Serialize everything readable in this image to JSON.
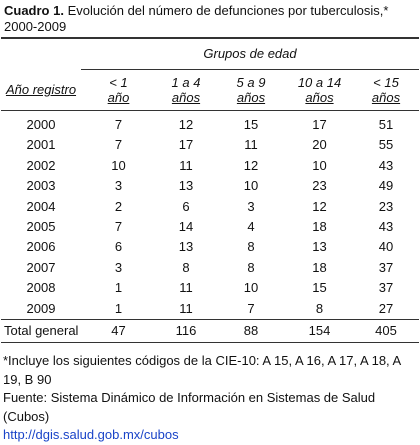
{
  "header": {
    "label": "Cuadro 1.",
    "title": "Evolución del número de defunciones por tuberculosis,* 2000-2009"
  },
  "table": {
    "group_header": "Grupos de edad",
    "row_header": "Año registro",
    "columns": [
      {
        "line1": "< 1",
        "line2": "año"
      },
      {
        "line1": "1 a 4",
        "line2": "años"
      },
      {
        "line1": "5 a 9",
        "line2": "años"
      },
      {
        "line1": "10 a 14",
        "line2": "años"
      },
      {
        "line1": "< 15",
        "line2": "años"
      }
    ],
    "rows": [
      {
        "year": 2000,
        "values": [
          7,
          12,
          15,
          17,
          51
        ]
      },
      {
        "year": 2001,
        "values": [
          7,
          17,
          11,
          20,
          55
        ]
      },
      {
        "year": 2002,
        "values": [
          10,
          11,
          12,
          10,
          43
        ]
      },
      {
        "year": 2003,
        "values": [
          3,
          13,
          10,
          23,
          49
        ]
      },
      {
        "year": 2004,
        "values": [
          2,
          6,
          3,
          12,
          23
        ]
      },
      {
        "year": 2005,
        "values": [
          7,
          14,
          4,
          18,
          43
        ]
      },
      {
        "year": 2006,
        "values": [
          6,
          13,
          8,
          13,
          40
        ]
      },
      {
        "year": 2007,
        "values": [
          3,
          8,
          8,
          18,
          37
        ]
      },
      {
        "year": 2008,
        "values": [
          1,
          11,
          10,
          15,
          37
        ]
      },
      {
        "year": 2009,
        "values": [
          1,
          11,
          7,
          8,
          27
        ]
      }
    ],
    "total": {
      "label": "Total general",
      "values": [
        47,
        116,
        88,
        154,
        405
      ]
    }
  },
  "footnotes": {
    "note": "*Incluye los siguientes códigos de la CIE-10: A 15, A 16, A 17, A 18, A 19, B 90",
    "source": "Fuente:  Sistema Dinámico de Información en Sistemas de Salud (Cubos)",
    "link": "http://dgis.salud.gob.mx/cubos"
  }
}
